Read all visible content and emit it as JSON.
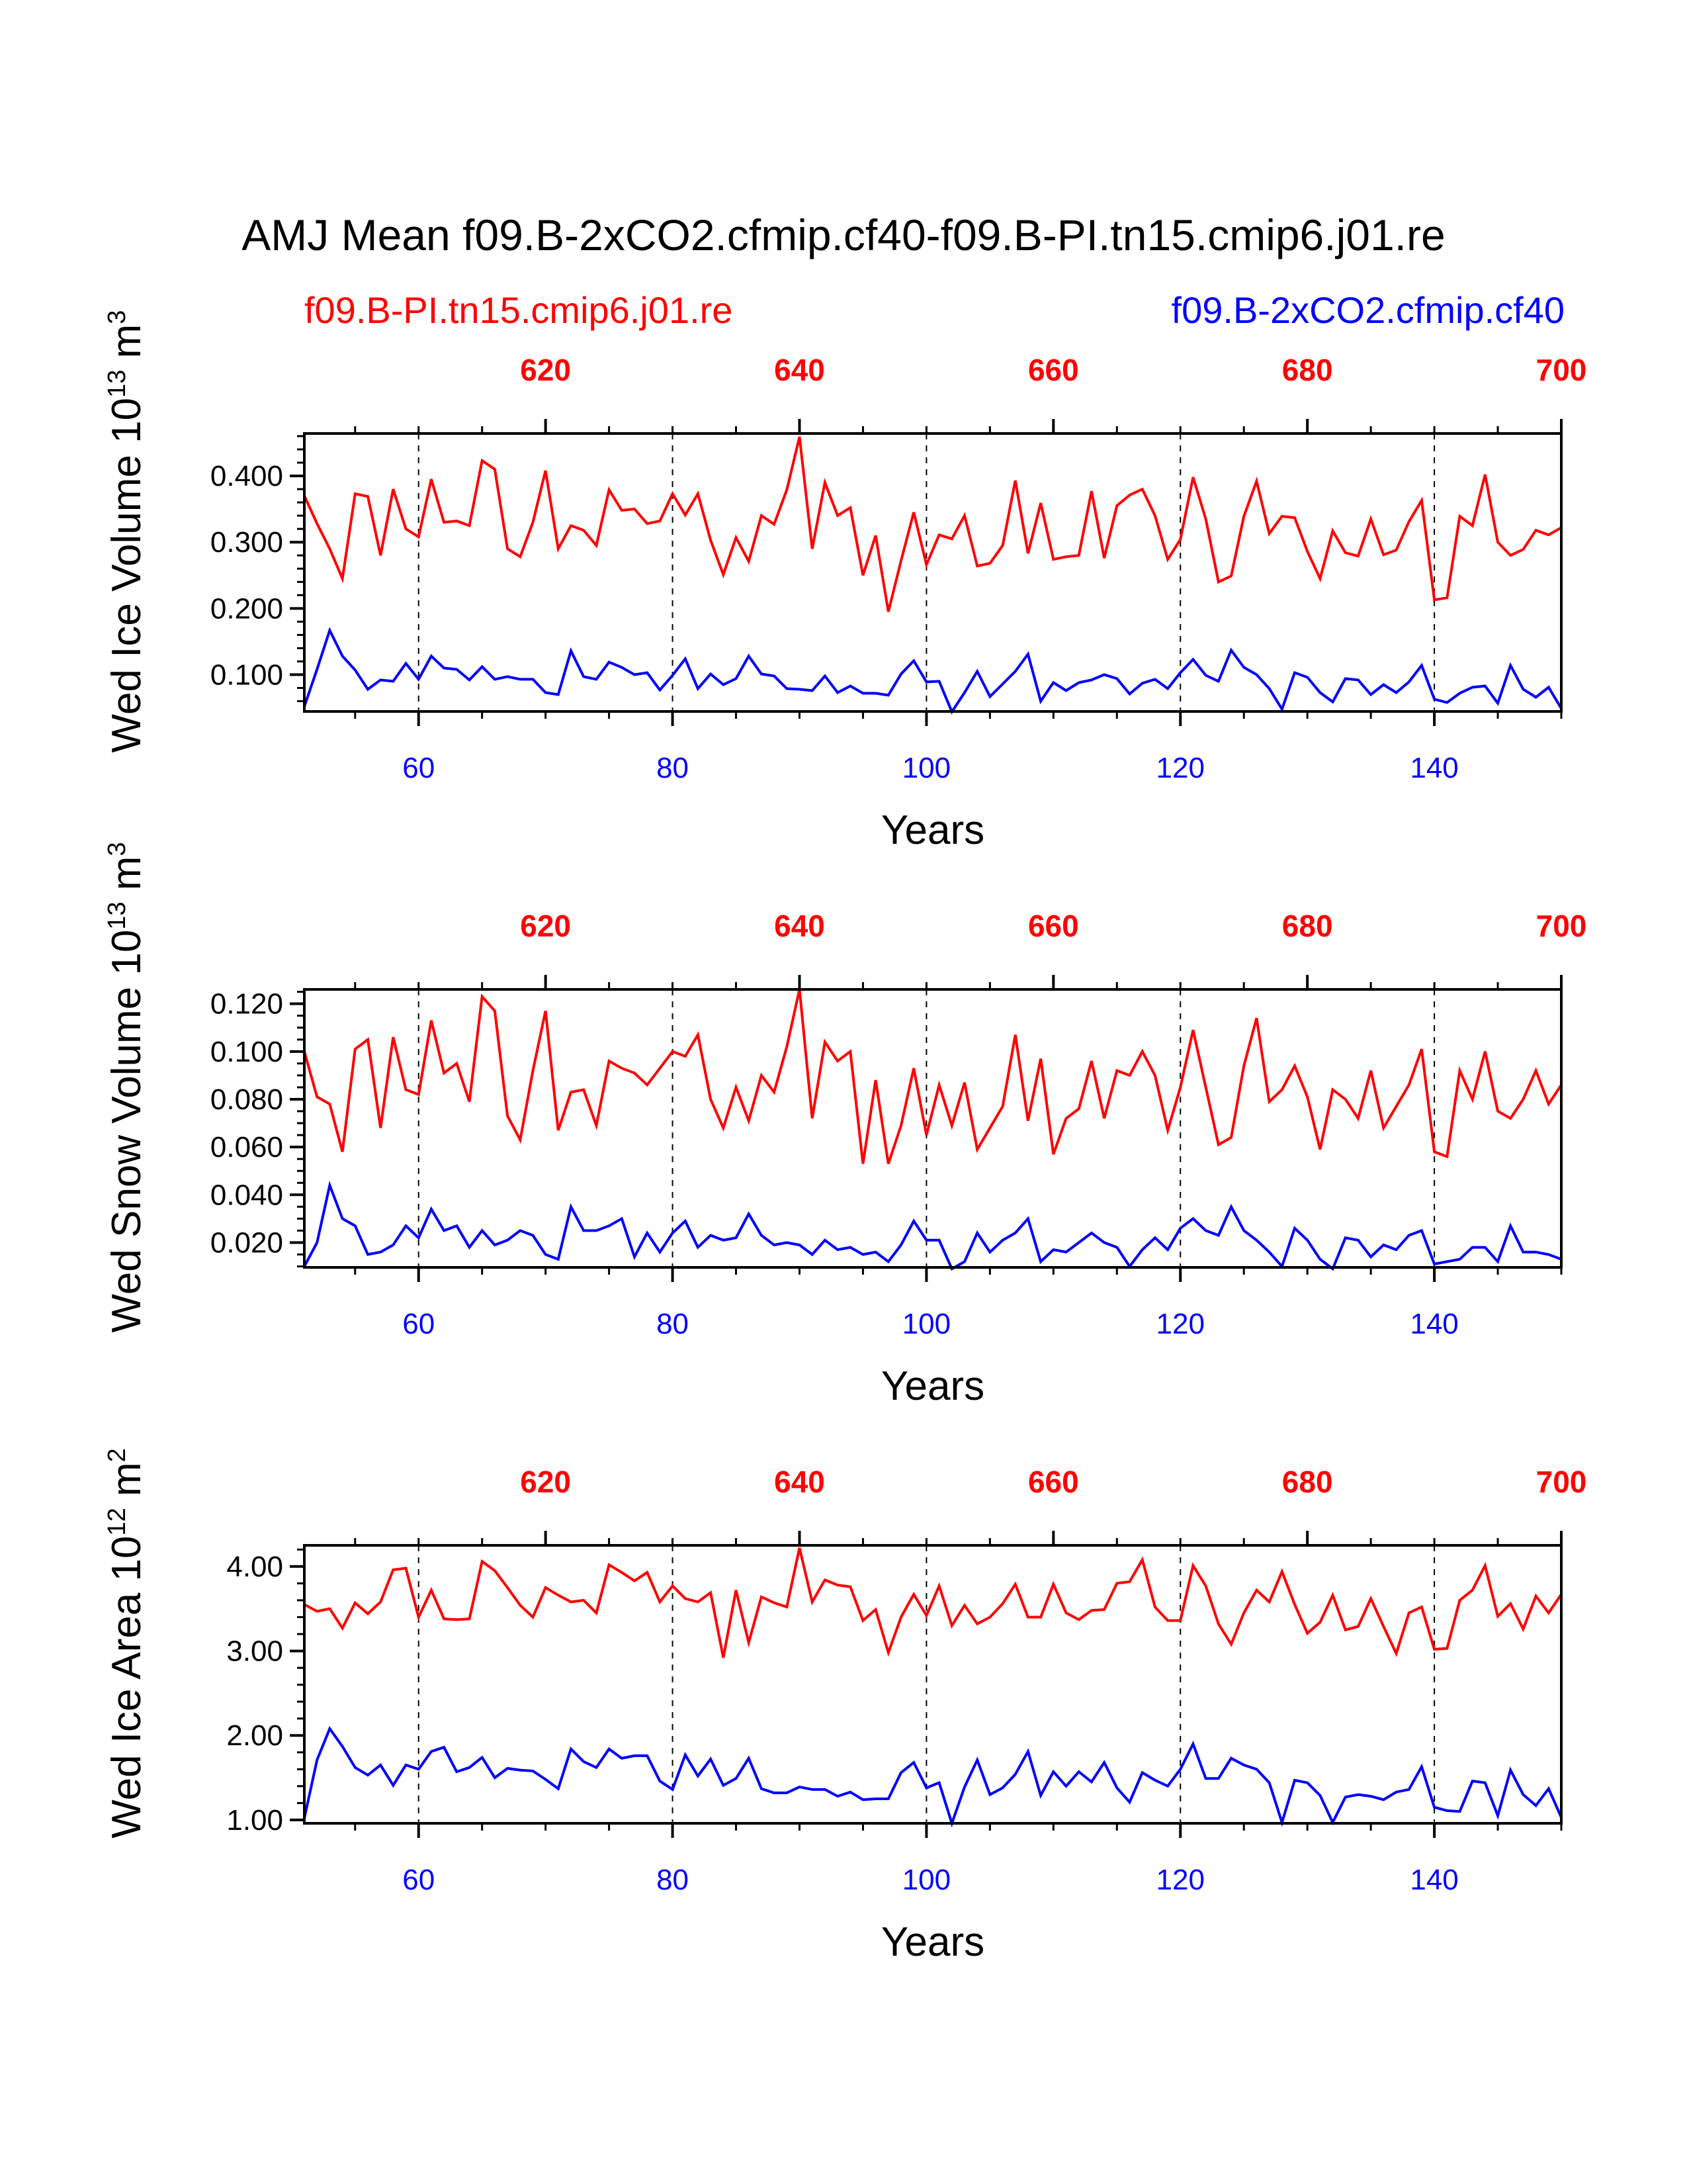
{
  "title": "AMJ Mean f09.B-2xCO2.cfmip.cf40-f09.B-PI.tn15.cmip6.j01.re",
  "legend": {
    "red_label": "f09.B-PI.tn15.cmip6.j01.re",
    "blue_label": "f09.B-2xCO2.cfmip.cf40"
  },
  "colors": {
    "red": "#ff0000",
    "blue": "#0000ff",
    "axis": "#000000"
  },
  "chart_data": [
    {
      "type": "line",
      "ylabel": "Wed Ice Volume 10",
      "ylabel_exp": "13",
      "ylabel_unit": " m",
      "ylabel_unit_exp": "3",
      "xlabel": "Years",
      "xlim": [
        51,
        150
      ],
      "ylim": [
        0.0445,
        0.464
      ],
      "yticks": [
        0.1,
        0.2,
        0.3,
        0.4
      ],
      "ytick_labels": [
        "0.100",
        "0.200",
        "0.300",
        "0.400"
      ],
      "ytick_minor": 0.02,
      "xticks_bottom": [
        60,
        80,
        100,
        120,
        140
      ],
      "xticks_top": [
        620,
        640,
        660,
        680,
        700
      ],
      "top_offset": 550,
      "gridlines_x": [
        60,
        80,
        100,
        120,
        140
      ],
      "x_start": 51,
      "series": [
        {
          "name": "f09.B-PI.tn15.cmip6.j01.re",
          "color": "red",
          "values": [
            0.37,
            0.328,
            0.29,
            0.245,
            0.373,
            0.369,
            0.28,
            0.38,
            0.32,
            0.308,
            0.395,
            0.33,
            0.332,
            0.325,
            0.423,
            0.41,
            0.29,
            0.278,
            0.33,
            0.408,
            0.29,
            0.325,
            0.318,
            0.295,
            0.379,
            0.348,
            0.35,
            0.328,
            0.332,
            0.373,
            0.341,
            0.373,
            0.303,
            0.251,
            0.307,
            0.271,
            0.34,
            0.327,
            0.379,
            0.459,
            0.29,
            0.39,
            0.34,
            0.352,
            0.25,
            0.31,
            0.195,
            0.272,
            0.345,
            0.266,
            0.311,
            0.305,
            0.34,
            0.264,
            0.268,
            0.295,
            0.393,
            0.283,
            0.359,
            0.274,
            0.278,
            0.28,
            0.377,
            0.276,
            0.355,
            0.371,
            0.38,
            0.34,
            0.274,
            0.304,
            0.398,
            0.335,
            0.24,
            0.249,
            0.339,
            0.392,
            0.313,
            0.339,
            0.337,
            0.286,
            0.245,
            0.317,
            0.284,
            0.279,
            0.335,
            0.281,
            0.288,
            0.331,
            0.363,
            0.213,
            0.216,
            0.339,
            0.325,
            0.402,
            0.3,
            0.28,
            0.289,
            0.318,
            0.311,
            0.322
          ]
        },
        {
          "name": "f09.B-2xCO2.cfmip.cf40",
          "color": "blue",
          "values": [
            0.052,
            0.108,
            0.167,
            0.128,
            0.107,
            0.078,
            0.092,
            0.09,
            0.117,
            0.093,
            0.128,
            0.11,
            0.108,
            0.092,
            0.112,
            0.093,
            0.097,
            0.093,
            0.093,
            0.073,
            0.07,
            0.136,
            0.097,
            0.093,
            0.119,
            0.111,
            0.1,
            0.103,
            0.077,
            0.099,
            0.124,
            0.079,
            0.101,
            0.085,
            0.094,
            0.128,
            0.101,
            0.098,
            0.079,
            0.078,
            0.076,
            0.098,
            0.073,
            0.083,
            0.072,
            0.072,
            0.069,
            0.101,
            0.121,
            0.089,
            0.09,
            0.044,
            0.073,
            0.105,
            0.067,
            0.086,
            0.105,
            0.131,
            0.06,
            0.088,
            0.076,
            0.088,
            0.092,
            0.1,
            0.094,
            0.071,
            0.087,
            0.093,
            0.079,
            0.103,
            0.123,
            0.099,
            0.09,
            0.137,
            0.111,
            0.1,
            0.079,
            0.048,
            0.103,
            0.096,
            0.073,
            0.059,
            0.094,
            0.092,
            0.07,
            0.085,
            0.073,
            0.089,
            0.114,
            0.063,
            0.058,
            0.072,
            0.081,
            0.083,
            0.057,
            0.114,
            0.078,
            0.066,
            0.081,
            0.049
          ]
        }
      ]
    },
    {
      "type": "line",
      "ylabel": "Wed Snow Volume 10",
      "ylabel_exp": "13",
      "ylabel_unit": " m",
      "ylabel_unit_exp": "3",
      "xlabel": "Years",
      "xlim": [
        51,
        150
      ],
      "ylim": [
        0.0096,
        0.126
      ],
      "yticks": [
        0.02,
        0.04,
        0.06,
        0.08,
        0.1,
        0.12
      ],
      "ytick_labels": [
        "0.020",
        "0.040",
        "0.060",
        "0.080",
        "0.100",
        "0.120"
      ],
      "ytick_minor": 0.005,
      "xticks_bottom": [
        60,
        80,
        100,
        120,
        140
      ],
      "xticks_top": [
        620,
        640,
        660,
        680,
        700
      ],
      "top_offset": 550,
      "gridlines_x": [
        60,
        80,
        100,
        120,
        140
      ],
      "x_start": 51,
      "series": [
        {
          "name": "f09.B-PI.tn15.cmip6.j01.re",
          "color": "red",
          "values": [
            0.1,
            0.081,
            0.078,
            0.058,
            0.101,
            0.105,
            0.068,
            0.106,
            0.084,
            0.082,
            0.113,
            0.091,
            0.095,
            0.079,
            0.123,
            0.117,
            0.073,
            0.063,
            0.092,
            0.117,
            0.067,
            0.083,
            0.084,
            0.069,
            0.096,
            0.093,
            0.091,
            0.086,
            0.093,
            0.1,
            0.098,
            0.107,
            0.08,
            0.068,
            0.085,
            0.071,
            0.09,
            0.083,
            0.102,
            0.126,
            0.072,
            0.104,
            0.096,
            0.1,
            0.053,
            0.088,
            0.053,
            0.069,
            0.093,
            0.065,
            0.086,
            0.069,
            0.087,
            0.059,
            0.068,
            0.077,
            0.107,
            0.071,
            0.097,
            0.057,
            0.072,
            0.076,
            0.096,
            0.072,
            0.092,
            0.09,
            0.1,
            0.09,
            0.067,
            0.085,
            0.109,
            0.085,
            0.061,
            0.064,
            0.094,
            0.114,
            0.079,
            0.084,
            0.094,
            0.081,
            0.059,
            0.084,
            0.08,
            0.072,
            0.092,
            0.068,
            0.077,
            0.086,
            0.101,
            0.058,
            0.056,
            0.092,
            0.08,
            0.1,
            0.075,
            0.072,
            0.08,
            0.092,
            0.078,
            0.086
          ]
        },
        {
          "name": "f09.B-2xCO2.cfmip.cf40",
          "color": "blue",
          "values": [
            0.01,
            0.02,
            0.044,
            0.03,
            0.027,
            0.015,
            0.016,
            0.019,
            0.027,
            0.022,
            0.034,
            0.025,
            0.027,
            0.018,
            0.025,
            0.019,
            0.021,
            0.025,
            0.023,
            0.015,
            0.013,
            0.035,
            0.025,
            0.025,
            0.027,
            0.03,
            0.014,
            0.024,
            0.016,
            0.024,
            0.029,
            0.018,
            0.023,
            0.021,
            0.022,
            0.032,
            0.023,
            0.019,
            0.02,
            0.019,
            0.015,
            0.021,
            0.017,
            0.018,
            0.015,
            0.016,
            0.012,
            0.019,
            0.029,
            0.021,
            0.021,
            0.009,
            0.012,
            0.024,
            0.016,
            0.021,
            0.024,
            0.03,
            0.012,
            0.017,
            0.016,
            0.02,
            0.024,
            0.02,
            0.018,
            0.01,
            0.017,
            0.022,
            0.017,
            0.026,
            0.03,
            0.025,
            0.023,
            0.035,
            0.025,
            0.021,
            0.016,
            0.01,
            0.026,
            0.021,
            0.013,
            0.009,
            0.022,
            0.021,
            0.014,
            0.019,
            0.017,
            0.023,
            0.025,
            0.011,
            0.012,
            0.013,
            0.018,
            0.018,
            0.012,
            0.027,
            0.016,
            0.016,
            0.015,
            0.013
          ]
        }
      ]
    },
    {
      "type": "line",
      "ylabel": "Wed Ice Area 10",
      "ylabel_exp": "12",
      "ylabel_unit": " m",
      "ylabel_unit_exp": "2",
      "xlabel": "Years",
      "xlim": [
        51,
        150
      ],
      "ylim": [
        0.96,
        4.25
      ],
      "yticks": [
        1.0,
        2.0,
        3.0,
        4.0
      ],
      "ytick_labels": [
        "1.00",
        "2.00",
        "3.00",
        "4.00"
      ],
      "ytick_minor": 0.2,
      "xticks_bottom": [
        60,
        80,
        100,
        120,
        140
      ],
      "xticks_top": [
        620,
        640,
        660,
        680,
        700
      ],
      "top_offset": 550,
      "gridlines_x": [
        60,
        80,
        100,
        120,
        140
      ],
      "x_start": 51,
      "series": [
        {
          "name": "f09.B-PI.tn15.cmip6.j01.re",
          "color": "red",
          "values": [
            3.55,
            3.47,
            3.5,
            3.27,
            3.57,
            3.44,
            3.58,
            3.96,
            3.98,
            3.4,
            3.72,
            3.38,
            3.37,
            3.38,
            4.06,
            3.95,
            3.75,
            3.54,
            3.4,
            3.75,
            3.66,
            3.58,
            3.6,
            3.45,
            4.02,
            3.93,
            3.83,
            3.93,
            3.58,
            3.77,
            3.62,
            3.58,
            3.69,
            2.92,
            3.72,
            3.1,
            3.64,
            3.57,
            3.52,
            4.22,
            3.58,
            3.84,
            3.78,
            3.76,
            3.36,
            3.49,
            2.98,
            3.4,
            3.67,
            3.42,
            3.77,
            3.3,
            3.54,
            3.32,
            3.4,
            3.56,
            3.79,
            3.4,
            3.4,
            3.79,
            3.45,
            3.37,
            3.48,
            3.49,
            3.8,
            3.82,
            4.08,
            3.52,
            3.36,
            3.36,
            4.01,
            3.77,
            3.32,
            3.08,
            3.45,
            3.72,
            3.58,
            3.94,
            3.55,
            3.21,
            3.34,
            3.66,
            3.25,
            3.29,
            3.62,
            3.29,
            2.97,
            3.45,
            3.52,
            3.02,
            3.03,
            3.6,
            3.72,
            4.01,
            3.41,
            3.56,
            3.26,
            3.65,
            3.45,
            3.67
          ]
        },
        {
          "name": "f09.B-2xCO2.cfmip.cf40",
          "color": "blue",
          "values": [
            1.02,
            1.71,
            2.08,
            1.87,
            1.62,
            1.53,
            1.65,
            1.41,
            1.65,
            1.6,
            1.81,
            1.86,
            1.57,
            1.62,
            1.74,
            1.5,
            1.61,
            1.59,
            1.58,
            1.48,
            1.37,
            1.84,
            1.69,
            1.62,
            1.84,
            1.73,
            1.76,
            1.76,
            1.46,
            1.36,
            1.77,
            1.52,
            1.72,
            1.41,
            1.49,
            1.73,
            1.37,
            1.32,
            1.32,
            1.39,
            1.36,
            1.36,
            1.28,
            1.33,
            1.24,
            1.25,
            1.25,
            1.56,
            1.68,
            1.38,
            1.44,
            0.96,
            1.39,
            1.71,
            1.3,
            1.38,
            1.54,
            1.81,
            1.29,
            1.57,
            1.4,
            1.57,
            1.45,
            1.68,
            1.38,
            1.21,
            1.56,
            1.47,
            1.4,
            1.6,
            1.9,
            1.49,
            1.49,
            1.73,
            1.65,
            1.6,
            1.44,
            0.97,
            1.47,
            1.44,
            1.29,
            0.97,
            1.27,
            1.3,
            1.28,
            1.24,
            1.33,
            1.36,
            1.63,
            1.15,
            1.11,
            1.1,
            1.46,
            1.44,
            1.05,
            1.59,
            1.3,
            1.17,
            1.37,
            1.03
          ]
        }
      ]
    }
  ]
}
